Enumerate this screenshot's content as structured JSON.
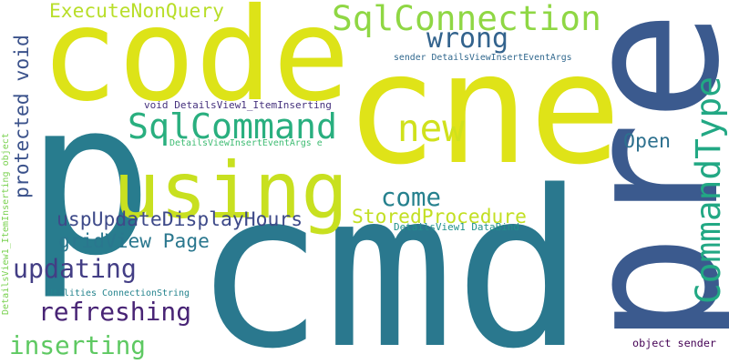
{
  "words": [
    {
      "text": "cmd",
      "color": "#2a788e"
    },
    {
      "text": "cne",
      "color": "#dfe318"
    },
    {
      "text": "p",
      "color": "#287c8e"
    },
    {
      "text": "code",
      "color": "#dde318"
    },
    {
      "text": "pre",
      "color": "#3b5a8e"
    },
    {
      "text": "using",
      "color": "#c8e020"
    },
    {
      "text": "SqlConnection",
      "color": "#8fd744"
    },
    {
      "text": "SqlCommand",
      "color": "#29af7f"
    },
    {
      "text": "CommandType",
      "color": "#22a884"
    },
    {
      "text": "new",
      "color": "#d0e11c"
    },
    {
      "text": "wrong",
      "color": "#33638d"
    },
    {
      "text": "ExecuteNonQuery",
      "color": "#b8de29"
    },
    {
      "text": "come",
      "color": "#26818e"
    },
    {
      "text": "StoredProcedure",
      "color": "#c2df23"
    },
    {
      "text": "uspUpdateDisplayHours",
      "color": "#3e4a89"
    },
    {
      "text": "gridView Page",
      "color": "#2a778e"
    },
    {
      "text": "updating",
      "color": "#433e85"
    },
    {
      "text": "refreshing",
      "color": "#482475"
    },
    {
      "text": "inserting",
      "color": "#5ec962"
    },
    {
      "text": "Open",
      "color": "#2d708e"
    },
    {
      "text": "protected void",
      "color": "#3b528b"
    },
    {
      "text": "DetailsViewInsertEventArgs e",
      "color": "#3fbc73"
    },
    {
      "text": "void DetailsView1_ItemInserting",
      "color": "#46327e"
    },
    {
      "text": "sender DetailsViewInsertEventArgs",
      "color": "#31688e"
    },
    {
      "text": "DetailsView1 DataBind",
      "color": "#21918c"
    },
    {
      "text": "Utilities ConnectionString",
      "color": "#25848e"
    },
    {
      "text": "DetailsView1_ItemInserting object",
      "color": "#7ad151"
    },
    {
      "text": "object sender",
      "color": "#440154"
    }
  ]
}
